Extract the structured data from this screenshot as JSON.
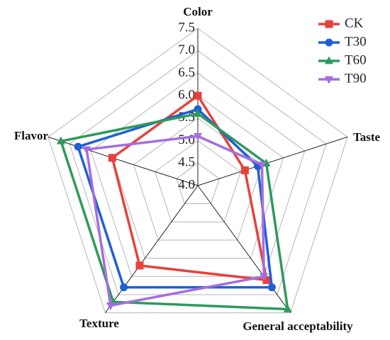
{
  "chart_data": {
    "type": "radar",
    "categories": [
      "Color",
      "Taste",
      "General acceptability",
      "Texture",
      "Flavor"
    ],
    "rlim": [
      4,
      7.5
    ],
    "rticks": [
      {
        "value": 4,
        "label": "4.0"
      },
      {
        "value": 4.5,
        "label": "4.5"
      },
      {
        "value": 5,
        "label": "5.0"
      },
      {
        "value": 5.5,
        "label": "5.5"
      },
      {
        "value": 6,
        "label": "6.0"
      },
      {
        "value": 6.5,
        "label": "6.5"
      },
      {
        "value": 7,
        "label": "7.0"
      },
      {
        "value": 7.5,
        "label": "7.5"
      }
    ],
    "grid": true,
    "legend": "upper right",
    "series": [
      {
        "name": "CK",
        "color": "#e8413c",
        "marker": "square",
        "values": [
          6.0,
          5.1,
          6.6,
          6.2,
          6.0
        ]
      },
      {
        "name": "T30",
        "color": "#1f5fd6",
        "marker": "circle",
        "values": [
          5.7,
          5.4,
          6.8,
          6.8,
          6.8
        ]
      },
      {
        "name": "T60",
        "color": "#2e9a5c",
        "marker": "triangle-up",
        "values": [
          5.6,
          5.6,
          7.4,
          7.2,
          7.2
        ]
      },
      {
        "name": "T90",
        "color": "#a56de0",
        "marker": "triangle-down",
        "values": [
          5.1,
          5.5,
          6.5,
          7.3,
          6.6
        ]
      }
    ]
  }
}
